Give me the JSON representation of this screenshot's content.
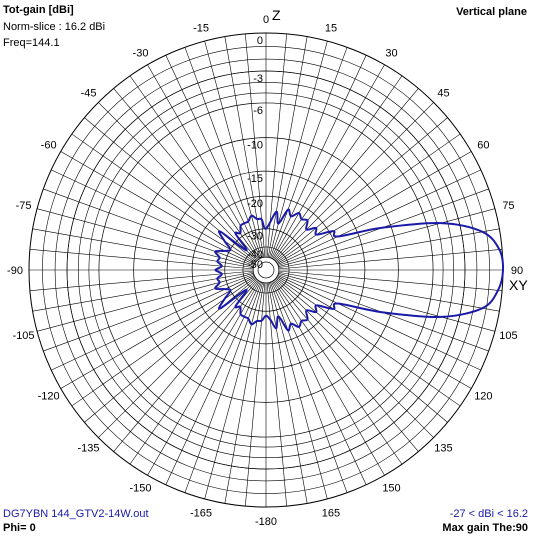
{
  "header": {
    "title": "Tot-gain [dBi]",
    "norm_slice": "Norm-slice : 16.2 dBi",
    "freq": "Freq=144.1",
    "plane": "Vertical plane"
  },
  "footer": {
    "filename": "DG7YBN 144_GTV2-14W.out",
    "range": "-27 < dBi < 16.2",
    "phi": "Phi= 0",
    "max_gain": "Max gain The:90"
  },
  "axes": {
    "z_label": "Z",
    "xy_label": "XY"
  },
  "colors": {
    "trace": "#1a1aa8",
    "grid": "#000000",
    "background": "#ffffff"
  },
  "chart_data": {
    "type": "polar",
    "angle_ticks": [
      "0",
      "15",
      "30",
      "45",
      "60",
      "75",
      "90",
      "105",
      "120",
      "135",
      "150",
      "165",
      "-180",
      "-165",
      "-150",
      "-135",
      "-120",
      "-105",
      "-90",
      "-75",
      "-60",
      "-45",
      "-30",
      "-15"
    ],
    "angle_tick_values": [
      0,
      15,
      30,
      45,
      60,
      75,
      90,
      105,
      120,
      135,
      150,
      165,
      180,
      -165,
      -150,
      -135,
      -120,
      -105,
      -90,
      -75,
      -60,
      -45,
      -30,
      -15
    ],
    "radial_ticks": [
      "0",
      "-3",
      "-6",
      "-10",
      "-15",
      "-20",
      "-30",
      "-40",
      "-50"
    ],
    "radial_tick_values_db": [
      0,
      -3,
      -6,
      -10,
      -15,
      -20,
      -30,
      -40,
      -50
    ],
    "series": [
      {
        "angle_deg": [
          0,
          10,
          15,
          20,
          25,
          30,
          35,
          40,
          45,
          50,
          55,
          60,
          65,
          70,
          75,
          80,
          85,
          90,
          95,
          100,
          105,
          110,
          115,
          120,
          125,
          130,
          135,
          140,
          145,
          150,
          155,
          160,
          165,
          170,
          175,
          180,
          -175,
          -170,
          -165,
          -160,
          -155,
          -150,
          -145,
          -140,
          -135,
          -130,
          -125,
          -120,
          -115,
          -110,
          -105,
          -100,
          -95,
          -90,
          -85,
          -80,
          -75,
          -70,
          -65,
          -60,
          -55,
          -50,
          -45,
          -40,
          -35,
          -30,
          -25,
          -20,
          -15,
          -10,
          -5
        ],
        "gain_dbi": [
          -13.8,
          -7.6,
          -11.2,
          -6.2,
          -7.6,
          -5.8,
          -6.8,
          -6.1,
          -8.2,
          -5.9,
          -6.9,
          -2.9,
          -2.6,
          5.0,
          11.6,
          14.9,
          16.0,
          16.2,
          15.9,
          14.9,
          11.6,
          5.0,
          -2.6,
          -2.9,
          -6.9,
          -5.9,
          -8.2,
          -6.1,
          -6.8,
          -5.8,
          -7.6,
          -6.2,
          -11.2,
          -7.6,
          -10.5,
          -12.0,
          -10.2,
          -9.9,
          -8.5,
          -9.9,
          -10.0,
          -10.2,
          -12.4,
          -11.4,
          -20.5,
          -7.4,
          -10.3,
          -13.9,
          -12.2,
          -9.2,
          -11.2,
          -10.7,
          -12.6,
          -10.3,
          -12.6,
          -10.7,
          -11.2,
          -9.2,
          -12.2,
          -13.9,
          -10.3,
          -7.4,
          -20.5,
          -11.4,
          -12.4,
          -10.2,
          -10.0,
          -9.9,
          -8.5,
          -9.9,
          -10.2
        ]
      }
    ]
  }
}
